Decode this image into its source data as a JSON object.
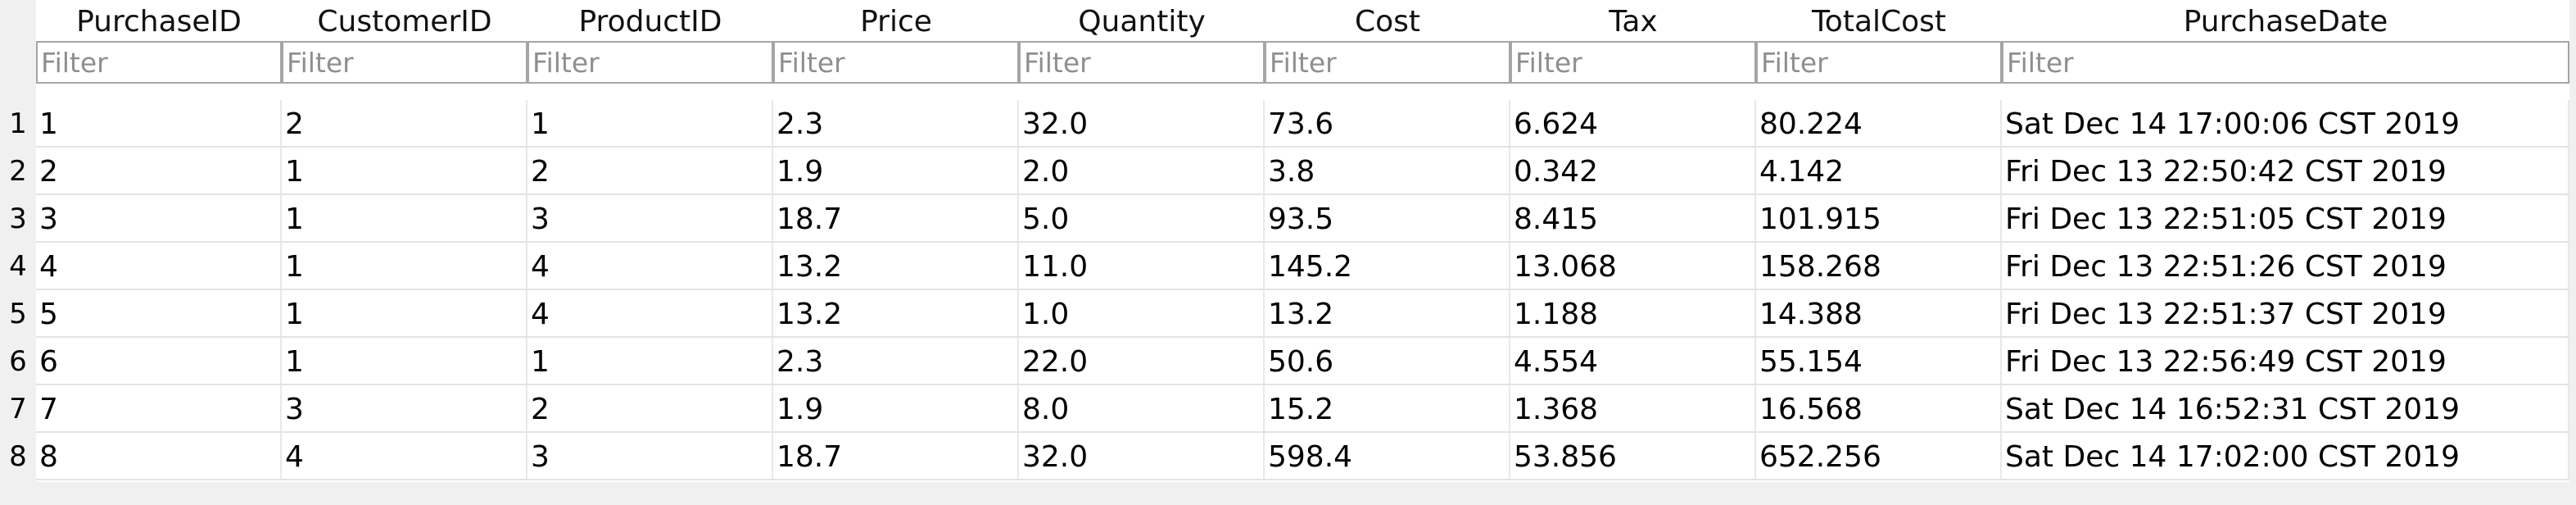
{
  "columns": [
    {
      "name": "PurchaseID",
      "filter_placeholder": "Filter"
    },
    {
      "name": "CustomerID",
      "filter_placeholder": "Filter"
    },
    {
      "name": "ProductID",
      "filter_placeholder": "Filter"
    },
    {
      "name": "Price",
      "filter_placeholder": "Filter"
    },
    {
      "name": "Quantity",
      "filter_placeholder": "Filter"
    },
    {
      "name": "Cost",
      "filter_placeholder": "Filter"
    },
    {
      "name": "Tax",
      "filter_placeholder": "Filter"
    },
    {
      "name": "TotalCost",
      "filter_placeholder": "Filter"
    },
    {
      "name": "PurchaseDate",
      "filter_placeholder": "Filter"
    }
  ],
  "rows": [
    {
      "num": "1",
      "cells": [
        "1",
        "2",
        "1",
        "2.3",
        "32.0",
        "73.6",
        "6.624",
        "80.224",
        "Sat Dec 14 17:00:06 CST 2019"
      ]
    },
    {
      "num": "2",
      "cells": [
        "2",
        "1",
        "2",
        "1.9",
        "2.0",
        "3.8",
        "0.342",
        "4.142",
        "Fri Dec 13 22:50:42 CST 2019"
      ]
    },
    {
      "num": "3",
      "cells": [
        "3",
        "1",
        "3",
        "18.7",
        "5.0",
        "93.5",
        "8.415",
        "101.915",
        "Fri Dec 13 22:51:05 CST 2019"
      ]
    },
    {
      "num": "4",
      "cells": [
        "4",
        "1",
        "4",
        "13.2",
        "11.0",
        "145.2",
        "13.068",
        "158.268",
        "Fri Dec 13 22:51:26 CST 2019"
      ]
    },
    {
      "num": "5",
      "cells": [
        "5",
        "1",
        "4",
        "13.2",
        "1.0",
        "13.2",
        "1.188",
        "14.388",
        "Fri Dec 13 22:51:37 CST 2019"
      ]
    },
    {
      "num": "6",
      "cells": [
        "6",
        "1",
        "1",
        "2.3",
        "22.0",
        "50.6",
        "4.554",
        "55.154",
        "Fri Dec 13 22:56:49 CST 2019"
      ]
    },
    {
      "num": "7",
      "cells": [
        "7",
        "3",
        "2",
        "1.9",
        "8.0",
        "15.2",
        "1.368",
        "16.568",
        "Sat Dec 14 16:52:31 CST 2019"
      ]
    },
    {
      "num": "8",
      "cells": [
        "8",
        "4",
        "3",
        "18.7",
        "32.0",
        "598.4",
        "53.856",
        "652.256",
        "Sat Dec 14 17:02:00 CST 2019"
      ]
    }
  ]
}
